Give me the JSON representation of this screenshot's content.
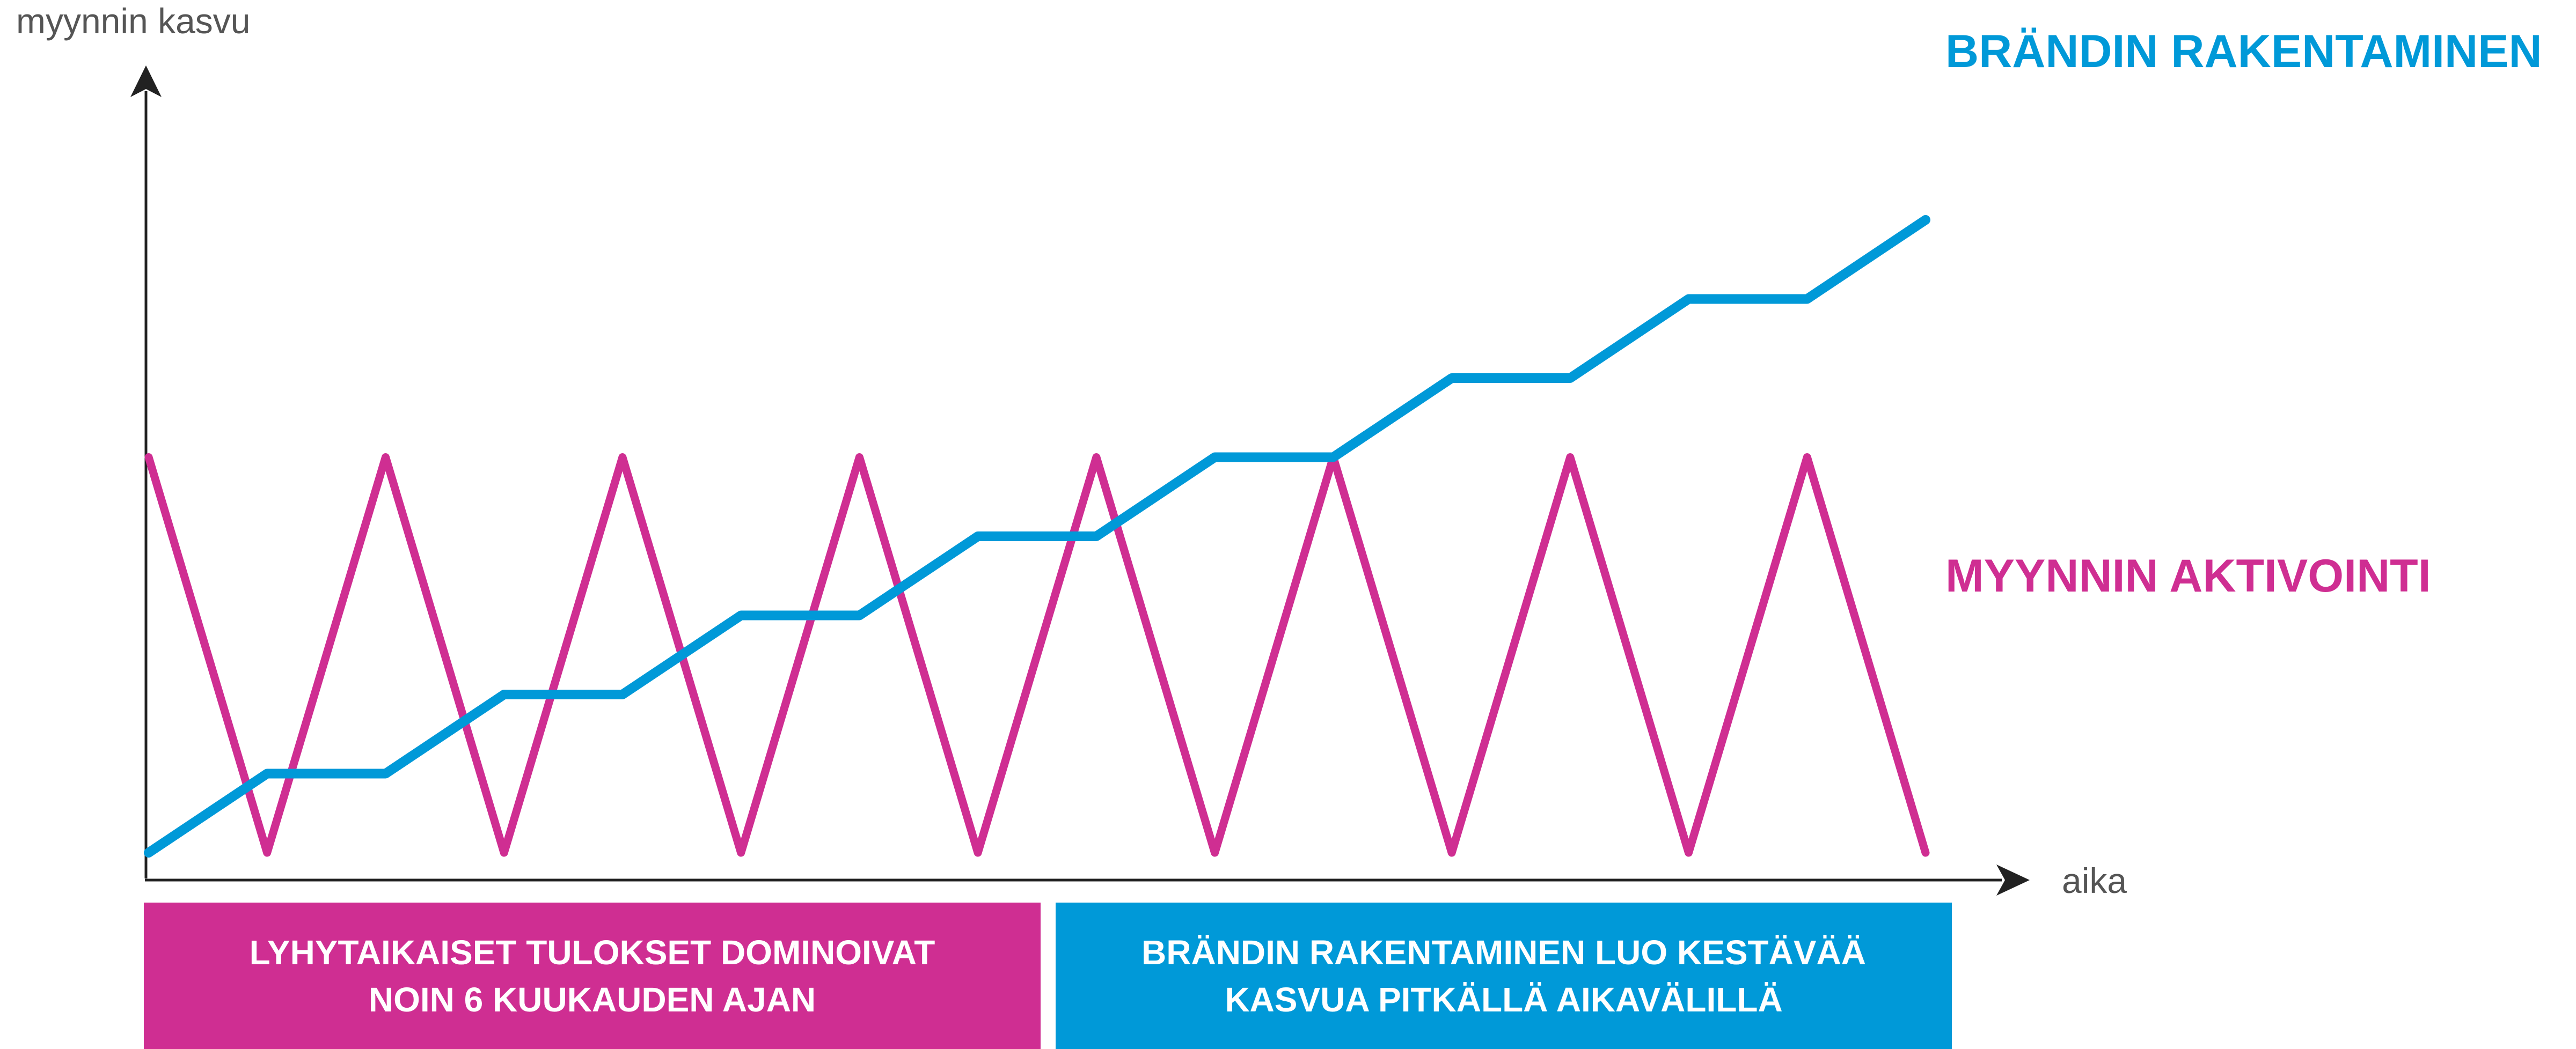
{
  "chart_data": {
    "type": "line",
    "title": "",
    "ylabel": "myynnin kasvu",
    "xlabel": "aika",
    "grid": false,
    "xlim": [
      0,
      15
    ],
    "ylim": [
      0,
      10
    ],
    "series": [
      {
        "name": "BRÄNDIN RAKENTAMINEN",
        "color": "#0099d8",
        "x": [
          0,
          1,
          2,
          3,
          4,
          5,
          6,
          7,
          8,
          9,
          10,
          11,
          12,
          13,
          14,
          15
        ],
        "y": [
          0,
          1,
          1,
          2,
          2,
          3,
          3,
          4,
          4,
          5,
          5,
          6,
          6,
          7,
          7,
          8
        ]
      },
      {
        "name": "MYYNNIN AKTIVOINTI",
        "color": "#cf2e92",
        "x": [
          0,
          1,
          2,
          3,
          4,
          5,
          6,
          7,
          8,
          9,
          10,
          11,
          12,
          13,
          14,
          15
        ],
        "y": [
          5,
          0,
          5,
          0,
          5,
          0,
          5,
          0,
          5,
          0,
          5,
          0,
          5,
          0,
          5,
          0
        ]
      }
    ]
  },
  "banners": [
    {
      "line1": "LYHYTAIKAISET TULOKSET DOMINOIVAT",
      "line2": "NOIN 6 KUUKAUDEN AJAN",
      "color": "#cf2e92"
    },
    {
      "line1": "BRÄNDIN RAKENTAMINEN LUO KESTÄVÄÄ",
      "line2": "KASVUA PITKÄLLÄ AIKAVÄLILLÄ",
      "color": "#0099d8"
    }
  ]
}
